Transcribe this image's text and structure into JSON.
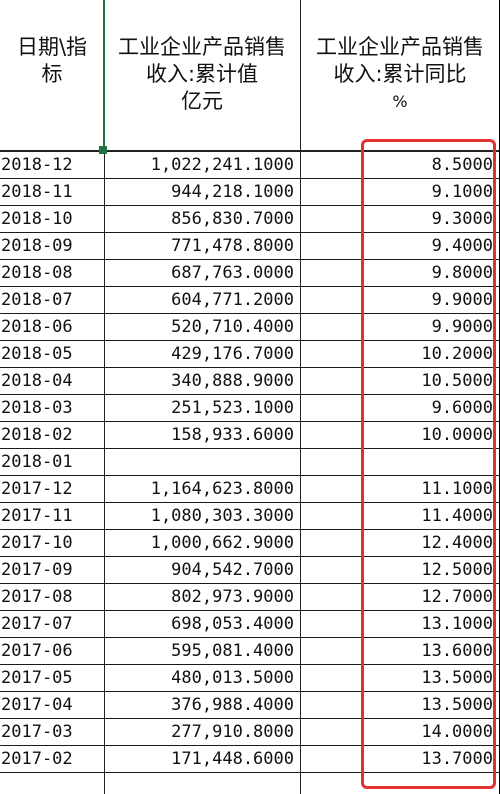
{
  "header": {
    "date_col": [
      "日期\\指",
      "标"
    ],
    "value_col": [
      "工业企业产品销售",
      "收入:累计值",
      "亿元"
    ],
    "yoy_col": [
      "工业企业产品销售",
      "收入:累计同比",
      "%"
    ]
  },
  "highlight_color": "#e0332f",
  "rows": [
    {
      "date": "2018-12",
      "value": "1,022,241.1000",
      "yoy": "8.5000"
    },
    {
      "date": "2018-11",
      "value": "944,218.1000",
      "yoy": "9.1000"
    },
    {
      "date": "2018-10",
      "value": "856,830.7000",
      "yoy": "9.3000"
    },
    {
      "date": "2018-09",
      "value": "771,478.8000",
      "yoy": "9.4000"
    },
    {
      "date": "2018-08",
      "value": "687,763.0000",
      "yoy": "9.8000"
    },
    {
      "date": "2018-07",
      "value": "604,771.2000",
      "yoy": "9.9000"
    },
    {
      "date": "2018-06",
      "value": "520,710.4000",
      "yoy": "9.9000"
    },
    {
      "date": "2018-05",
      "value": "429,176.7000",
      "yoy": "10.2000"
    },
    {
      "date": "2018-04",
      "value": "340,888.9000",
      "yoy": "10.5000"
    },
    {
      "date": "2018-03",
      "value": "251,523.1000",
      "yoy": "9.6000"
    },
    {
      "date": "2018-02",
      "value": "158,933.6000",
      "yoy": "10.0000"
    },
    {
      "date": "2018-01",
      "value": "",
      "yoy": ""
    },
    {
      "date": "2017-12",
      "value": "1,164,623.8000",
      "yoy": "11.1000"
    },
    {
      "date": "2017-11",
      "value": "1,080,303.3000",
      "yoy": "11.4000"
    },
    {
      "date": "2017-10",
      "value": "1,000,662.9000",
      "yoy": "12.4000"
    },
    {
      "date": "2017-09",
      "value": "904,542.7000",
      "yoy": "12.5000"
    },
    {
      "date": "2017-08",
      "value": "802,973.9000",
      "yoy": "12.7000"
    },
    {
      "date": "2017-07",
      "value": "698,053.4000",
      "yoy": "13.1000"
    },
    {
      "date": "2017-06",
      "value": "595,081.4000",
      "yoy": "13.6000"
    },
    {
      "date": "2017-05",
      "value": "480,013.5000",
      "yoy": "13.5000"
    },
    {
      "date": "2017-04",
      "value": "376,988.4000",
      "yoy": "13.5000"
    },
    {
      "date": "2017-03",
      "value": "277,910.8000",
      "yoy": "14.0000"
    },
    {
      "date": "2017-02",
      "value": "171,448.6000",
      "yoy": "13.7000"
    }
  ]
}
